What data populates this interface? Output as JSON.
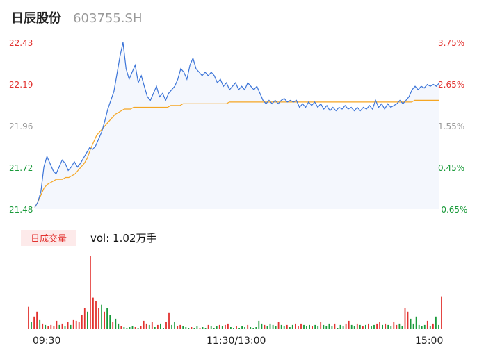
{
  "header": {
    "name": "日辰股份",
    "code": "603755.SH"
  },
  "colors": {
    "up": "#e2322f",
    "down": "#1a9a3a",
    "neutral": "#9a9a9a",
    "price_line": "#3b74d8",
    "avg_line": "#f5a623",
    "area_fill": "#f4f7fd"
  },
  "volume_panel": {
    "badge": "日成交量",
    "text": "vol: 1.02万手"
  },
  "chart_data": [
    {
      "type": "line",
      "title": "",
      "ylim": [
        21.48,
        22.43
      ],
      "left_ticks": [
        "22.43",
        "22.19",
        "21.96",
        "21.72",
        "21.48"
      ],
      "right_ticks": [
        "3.75%",
        "2.65%",
        "1.55%",
        "0.45%",
        "-0.65%"
      ],
      "x_ticks": [
        "09:30",
        "11:30/13:00",
        "15:00"
      ],
      "grid": false,
      "series": [
        {
          "values": [
            21.49,
            21.52,
            21.58,
            21.72,
            21.78,
            21.74,
            21.7,
            21.68,
            21.72,
            21.76,
            21.74,
            21.7,
            21.72,
            21.75,
            21.72,
            21.74,
            21.77,
            21.8,
            21.83,
            21.82,
            21.84,
            21.88,
            21.92,
            21.98,
            22.05,
            22.1,
            22.15,
            22.25,
            22.35,
            22.43,
            22.28,
            22.22,
            22.26,
            22.3,
            22.2,
            22.24,
            22.18,
            22.12,
            22.1,
            22.14,
            22.18,
            22.12,
            22.14,
            22.1,
            22.14,
            22.16,
            22.18,
            22.22,
            22.28,
            22.26,
            22.22,
            22.3,
            22.34,
            22.28,
            22.26,
            22.24,
            22.26,
            22.24,
            22.26,
            22.24,
            22.2,
            22.22,
            22.18,
            22.2,
            22.16,
            22.18,
            22.2,
            22.16,
            22.18,
            22.16,
            22.2,
            22.18,
            22.16,
            22.18,
            22.14,
            22.1,
            22.08,
            22.1,
            22.08,
            22.1,
            22.08,
            22.1,
            22.11,
            22.09,
            22.1,
            22.09,
            22.1,
            22.06,
            22.08,
            22.06,
            22.09,
            22.07,
            22.09,
            22.06,
            22.08,
            22.05,
            22.07,
            22.04,
            22.06,
            22.04,
            22.06,
            22.05,
            22.07,
            22.05,
            22.06,
            22.04,
            22.06,
            22.04,
            22.06,
            22.05,
            22.07,
            22.05,
            22.1,
            22.06,
            22.08,
            22.05,
            22.08,
            22.06,
            22.07,
            22.08,
            22.1,
            22.08,
            22.1,
            22.12,
            22.16,
            22.18,
            22.16,
            22.18,
            22.17,
            22.19,
            22.18,
            22.19,
            22.18,
            22.2
          ]
        },
        {
          "values": [
            21.49,
            21.52,
            21.56,
            21.6,
            21.62,
            21.63,
            21.64,
            21.65,
            21.65,
            21.65,
            21.66,
            21.66,
            21.67,
            21.68,
            21.7,
            21.72,
            21.74,
            21.77,
            21.82,
            21.86,
            21.9,
            21.92,
            21.94,
            21.96,
            21.98,
            22,
            22.02,
            22.03,
            22.04,
            22.05,
            22.05,
            22.05,
            22.06,
            22.06,
            22.06,
            22.06,
            22.06,
            22.06,
            22.06,
            22.06,
            22.06,
            22.06,
            22.06,
            22.06,
            22.07,
            22.07,
            22.07,
            22.07,
            22.08,
            22.08,
            22.08,
            22.08,
            22.08,
            22.08,
            22.08,
            22.08,
            22.08,
            22.08,
            22.08,
            22.08,
            22.08,
            22.08,
            22.08,
            22.09,
            22.09,
            22.09,
            22.09,
            22.09,
            22.09,
            22.09,
            22.09,
            22.09,
            22.09,
            22.09,
            22.09,
            22.09,
            22.09,
            22.09,
            22.09,
            22.09,
            22.09,
            22.09,
            22.09,
            22.09,
            22.09,
            22.09,
            22.09,
            22.09,
            22.09,
            22.09,
            22.09,
            22.09,
            22.09,
            22.09,
            22.09,
            22.09,
            22.09,
            22.09,
            22.09,
            22.09,
            22.09,
            22.09,
            22.09,
            22.09,
            22.09,
            22.09,
            22.09,
            22.09,
            22.09,
            22.09,
            22.09,
            22.09,
            22.09,
            22.09,
            22.09,
            22.09,
            22.09,
            22.09,
            22.09,
            22.09,
            22.09,
            22.09,
            22.09,
            22.1,
            22.1,
            22.1,
            22.1,
            22.1,
            22.1,
            22.1,
            22.1,
            22.1
          ]
        }
      ]
    },
    {
      "type": "bar",
      "title": "",
      "bars": [
        [
          32,
          "r"
        ],
        [
          10,
          "g"
        ],
        [
          18,
          "r"
        ],
        [
          25,
          "r"
        ],
        [
          14,
          "g"
        ],
        [
          8,
          "r"
        ],
        [
          6,
          "g"
        ],
        [
          4,
          "r"
        ],
        [
          6,
          "r"
        ],
        [
          5,
          "r"
        ],
        [
          12,
          "r"
        ],
        [
          6,
          "g"
        ],
        [
          8,
          "r"
        ],
        [
          5,
          "g"
        ],
        [
          10,
          "r"
        ],
        [
          6,
          "g"
        ],
        [
          14,
          "r"
        ],
        [
          12,
          "r"
        ],
        [
          10,
          "r"
        ],
        [
          20,
          "r"
        ],
        [
          30,
          "r"
        ],
        [
          25,
          "g"
        ],
        [
          105,
          "r"
        ],
        [
          45,
          "r"
        ],
        [
          40,
          "r"
        ],
        [
          30,
          "r"
        ],
        [
          35,
          "g"
        ],
        [
          25,
          "r"
        ],
        [
          30,
          "g"
        ],
        [
          20,
          "g"
        ],
        [
          10,
          "r"
        ],
        [
          15,
          "g"
        ],
        [
          8,
          "g"
        ],
        [
          4,
          "r"
        ],
        [
          3,
          "g"
        ],
        [
          2,
          "g"
        ],
        [
          3,
          "g"
        ],
        [
          4,
          "g"
        ],
        [
          3,
          "r"
        ],
        [
          2,
          "g"
        ],
        [
          4,
          "r"
        ],
        [
          12,
          "r"
        ],
        [
          8,
          "r"
        ],
        [
          6,
          "g"
        ],
        [
          10,
          "r"
        ],
        [
          3,
          "g"
        ],
        [
          6,
          "r"
        ],
        [
          8,
          "g"
        ],
        [
          2,
          "g"
        ],
        [
          10,
          "r"
        ],
        [
          24,
          "r"
        ],
        [
          6,
          "g"
        ],
        [
          10,
          "g"
        ],
        [
          4,
          "r"
        ],
        [
          6,
          "r"
        ],
        [
          4,
          "g"
        ],
        [
          3,
          "g"
        ],
        [
          2,
          "g"
        ],
        [
          3,
          "r"
        ],
        [
          2,
          "g"
        ],
        [
          4,
          "g"
        ],
        [
          2,
          "r"
        ],
        [
          3,
          "g"
        ],
        [
          2,
          "g"
        ],
        [
          6,
          "r"
        ],
        [
          4,
          "g"
        ],
        [
          2,
          "g"
        ],
        [
          4,
          "g"
        ],
        [
          6,
          "r"
        ],
        [
          4,
          "g"
        ],
        [
          6,
          "r"
        ],
        [
          8,
          "r"
        ],
        [
          3,
          "g"
        ],
        [
          2,
          "g"
        ],
        [
          4,
          "r"
        ],
        [
          2,
          "g"
        ],
        [
          4,
          "g"
        ],
        [
          3,
          "g"
        ],
        [
          6,
          "r"
        ],
        [
          3,
          "g"
        ],
        [
          2,
          "g"
        ],
        [
          3,
          "g"
        ],
        [
          12,
          "g"
        ],
        [
          8,
          "g"
        ],
        [
          6,
          "r"
        ],
        [
          5,
          "g"
        ],
        [
          8,
          "g"
        ],
        [
          6,
          "g"
        ],
        [
          5,
          "g"
        ],
        [
          10,
          "r"
        ],
        [
          6,
          "g"
        ],
        [
          4,
          "g"
        ],
        [
          6,
          "r"
        ],
        [
          3,
          "g"
        ],
        [
          6,
          "g"
        ],
        [
          8,
          "r"
        ],
        [
          4,
          "r"
        ],
        [
          8,
          "r"
        ],
        [
          6,
          "g"
        ],
        [
          4,
          "g"
        ],
        [
          6,
          "g"
        ],
        [
          4,
          "r"
        ],
        [
          6,
          "g"
        ],
        [
          5,
          "g"
        ],
        [
          10,
          "r"
        ],
        [
          6,
          "g"
        ],
        [
          4,
          "g"
        ],
        [
          8,
          "g"
        ],
        [
          5,
          "g"
        ],
        [
          8,
          "r"
        ],
        [
          2,
          "g"
        ],
        [
          6,
          "g"
        ],
        [
          4,
          "g"
        ],
        [
          8,
          "r"
        ],
        [
          12,
          "r"
        ],
        [
          6,
          "g"
        ],
        [
          4,
          "g"
        ],
        [
          8,
          "r"
        ],
        [
          6,
          "g"
        ],
        [
          4,
          "r"
        ],
        [
          6,
          "g"
        ],
        [
          8,
          "r"
        ],
        [
          4,
          "g"
        ],
        [
          6,
          "g"
        ],
        [
          8,
          "r"
        ],
        [
          10,
          "r"
        ],
        [
          6,
          "g"
        ],
        [
          8,
          "r"
        ],
        [
          6,
          "g"
        ],
        [
          4,
          "g"
        ],
        [
          10,
          "r"
        ],
        [
          6,
          "r"
        ],
        [
          8,
          "g"
        ],
        [
          4,
          "g"
        ],
        [
          30,
          "r"
        ],
        [
          25,
          "r"
        ],
        [
          15,
          "g"
        ],
        [
          8,
          "g"
        ],
        [
          18,
          "g"
        ],
        [
          6,
          "g"
        ],
        [
          4,
          "g"
        ],
        [
          6,
          "g"
        ],
        [
          12,
          "r"
        ],
        [
          4,
          "g"
        ],
        [
          8,
          "r"
        ],
        [
          18,
          "g"
        ],
        [
          6,
          "g"
        ],
        [
          47,
          "r"
        ]
      ]
    }
  ]
}
